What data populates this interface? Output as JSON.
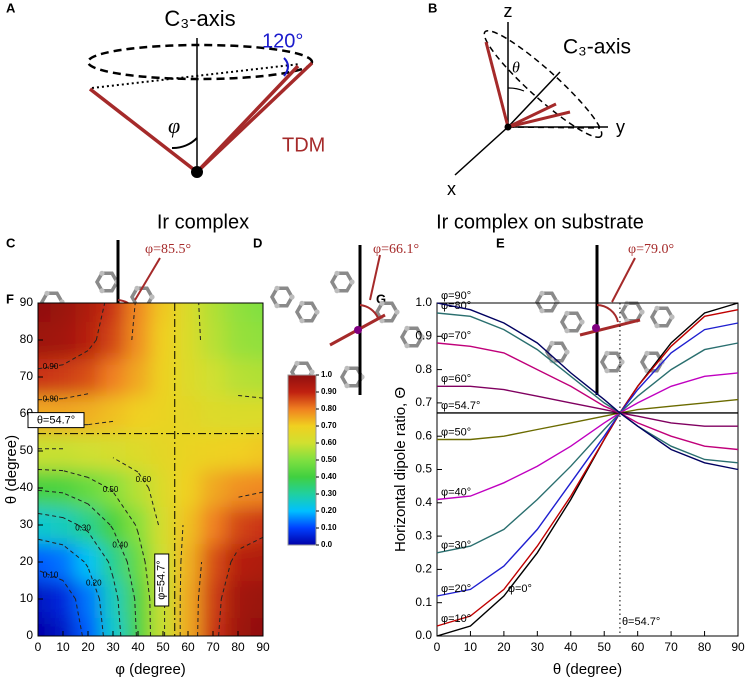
{
  "panel_labels": [
    "A",
    "B",
    "C",
    "D",
    "E",
    "F",
    "G"
  ],
  "panel_a": {
    "axis_label": "C₃-axis",
    "angle": "120°",
    "phi": "φ",
    "tdm": "TDM",
    "caption": "Ir complex"
  },
  "panel_b": {
    "z": "z",
    "y": "y",
    "x": "x",
    "theta": "θ",
    "axis_label": "C₃-axis",
    "caption": "Ir complex on substrate"
  },
  "molecules": [
    {
      "angle": "φ=85.5°"
    },
    {
      "angle": "φ=66.1°"
    },
    {
      "angle": "φ=79.0°"
    }
  ],
  "chart_data": [
    {
      "type": "heatmap",
      "x": [
        0,
        10,
        20,
        30,
        40,
        50,
        60,
        70,
        80,
        90
      ],
      "y": [
        0,
        10,
        20,
        30,
        40,
        50,
        60,
        70,
        80,
        90
      ],
      "z": [
        [
          0,
          0.03,
          0.12,
          0.25,
          0.41,
          0.59,
          0.75,
          0.88,
          0.97,
          1.0
        ],
        [
          0.03,
          0.06,
          0.14,
          0.27,
          0.42,
          0.59,
          0.75,
          0.87,
          0.96,
          0.98
        ],
        [
          0.12,
          0.14,
          0.21,
          0.32,
          0.46,
          0.6,
          0.74,
          0.85,
          0.92,
          0.94
        ],
        [
          0.25,
          0.27,
          0.32,
          0.41,
          0.51,
          0.62,
          0.72,
          0.8,
          0.86,
          0.88
        ],
        [
          0.41,
          0.42,
          0.46,
          0.51,
          0.57,
          0.64,
          0.7,
          0.75,
          0.78,
          0.79
        ],
        [
          0.59,
          0.59,
          0.6,
          0.62,
          0.64,
          0.66,
          0.68,
          0.69,
          0.7,
          0.71
        ],
        [
          0.75,
          0.75,
          0.74,
          0.72,
          0.7,
          0.68,
          0.66,
          0.64,
          0.63,
          0.63
        ],
        [
          0.88,
          0.87,
          0.85,
          0.8,
          0.75,
          0.69,
          0.64,
          0.6,
          0.57,
          0.56
        ],
        [
          0.97,
          0.96,
          0.92,
          0.86,
          0.78,
          0.7,
          0.63,
          0.57,
          0.53,
          0.52
        ],
        [
          1.0,
          0.98,
          0.94,
          0.88,
          0.79,
          0.71,
          0.63,
          0.56,
          0.52,
          0.5
        ]
      ],
      "xlim": [
        0,
        90
      ],
      "ylim": [
        0,
        90
      ],
      "xticks": [
        0,
        10,
        20,
        30,
        40,
        50,
        60,
        70,
        80,
        90
      ],
      "yticks": [
        0,
        10,
        20,
        30,
        40,
        50,
        60,
        70,
        80,
        90
      ],
      "xlabel": "φ (degree)",
      "ylabel": "θ (degree)",
      "colorscale": [
        "#0000a8",
        "#0040ff",
        "#00c0ff",
        "#20d0a0",
        "#40d040",
        "#80e040",
        "#d0e030",
        "#f0d020",
        "#f08020",
        "#c02010",
        "#901010"
      ],
      "colorbar_ticks": [
        {
          "value": 0,
          "label": "0.0"
        },
        {
          "value": 0.1,
          "label": "0.10"
        },
        {
          "value": 0.2,
          "label": "0.20"
        },
        {
          "value": 0.3,
          "label": "0.30"
        },
        {
          "value": 0.4,
          "label": "0.40"
        },
        {
          "value": 0.5,
          "label": "0.50"
        },
        {
          "value": 0.6,
          "label": "0.60"
        },
        {
          "value": 0.7,
          "label": "0.70"
        },
        {
          "value": 0.8,
          "label": "0.80"
        },
        {
          "value": 0.9,
          "label": "0.90"
        },
        {
          "value": 1,
          "label": "1.0"
        }
      ],
      "contours": [
        {
          "value": 0.1,
          "label": "0.10"
        },
        {
          "value": 0.2,
          "label": "0.20"
        },
        {
          "value": 0.3,
          "label": "0.30"
        },
        {
          "value": 0.4,
          "label": "0.40"
        },
        {
          "value": 0.5,
          "label": "0.50"
        },
        {
          "value": 0.6,
          "label": "0.60"
        },
        {
          "value": 0.7,
          "label": "0.70"
        },
        {
          "value": 0.8,
          "label": "0.80"
        },
        {
          "value": 0.9,
          "label": "0.90"
        }
      ],
      "annotations": [
        {
          "axis": "x",
          "value": 54.7,
          "label": "φ=54.7°"
        },
        {
          "axis": "y",
          "value": 54.7,
          "label": "θ=54.7°"
        }
      ]
    },
    {
      "type": "line",
      "x": [
        0,
        10,
        20,
        30,
        40,
        50,
        54.7,
        60,
        70,
        80,
        90
      ],
      "series": [
        {
          "name": "φ=0°",
          "color": "#000000",
          "values": [
            0,
            0.03,
            0.12,
            0.25,
            0.41,
            0.59,
            0.67,
            0.75,
            0.88,
            0.97,
            1.0
          ]
        },
        {
          "name": "φ=10°",
          "color": "#c00000",
          "values": [
            0.03,
            0.06,
            0.14,
            0.27,
            0.42,
            0.59,
            0.67,
            0.75,
            0.87,
            0.96,
            0.98
          ]
        },
        {
          "name": "φ=20°",
          "color": "#1f1fd0",
          "values": [
            0.12,
            0.14,
            0.21,
            0.32,
            0.46,
            0.6,
            0.67,
            0.74,
            0.85,
            0.92,
            0.94
          ]
        },
        {
          "name": "φ=30°",
          "color": "#2a6f6f",
          "values": [
            0.25,
            0.27,
            0.32,
            0.41,
            0.51,
            0.62,
            0.67,
            0.72,
            0.8,
            0.86,
            0.88
          ]
        },
        {
          "name": "φ=40°",
          "color": "#c000c0",
          "values": [
            0.41,
            0.42,
            0.46,
            0.51,
            0.57,
            0.64,
            0.67,
            0.7,
            0.75,
            0.78,
            0.79
          ]
        },
        {
          "name": "φ=50°",
          "color": "#6b6b00",
          "values": [
            0.59,
            0.59,
            0.6,
            0.62,
            0.64,
            0.66,
            0.67,
            0.68,
            0.69,
            0.7,
            0.71
          ]
        },
        {
          "name": "φ=54.7°",
          "color": "#000000",
          "values": [
            0.67,
            0.67,
            0.67,
            0.67,
            0.67,
            0.67,
            0.67,
            0.67,
            0.67,
            0.67,
            0.67
          ]
        },
        {
          "name": "φ=60°",
          "color": "#800060",
          "values": [
            0.75,
            0.75,
            0.74,
            0.72,
            0.7,
            0.68,
            0.67,
            0.66,
            0.64,
            0.63,
            0.63
          ]
        },
        {
          "name": "φ=70°",
          "color": "#c0007a",
          "values": [
            0.88,
            0.87,
            0.85,
            0.8,
            0.75,
            0.69,
            0.67,
            0.64,
            0.6,
            0.57,
            0.56
          ]
        },
        {
          "name": "φ=80°",
          "color": "#2a6f6f",
          "values": [
            0.97,
            0.96,
            0.92,
            0.86,
            0.78,
            0.7,
            0.67,
            0.63,
            0.57,
            0.53,
            0.52
          ]
        },
        {
          "name": "φ=90°",
          "color": "#000060",
          "values": [
            1.0,
            0.98,
            0.94,
            0.88,
            0.79,
            0.71,
            0.67,
            0.63,
            0.56,
            0.52,
            0.5
          ]
        }
      ],
      "xlim": [
        0,
        90
      ],
      "ylim": [
        0,
        1
      ],
      "xticks": [
        0,
        10,
        20,
        30,
        40,
        50,
        60,
        70,
        80,
        90
      ],
      "yticks": [
        {
          "value": 0,
          "label": "0.0"
        },
        0.1,
        0.2,
        0.3,
        0.4,
        0.5,
        0.6,
        0.7,
        0.8,
        0.9,
        {
          "value": 1,
          "label": "1.0"
        }
      ],
      "xlabel": "θ (degree)",
      "ylabel": "Horizontal dipole ratio, Θ",
      "annotations": [
        {
          "axis": "x",
          "value": 54.7,
          "label": "θ=54.7°"
        }
      ]
    }
  ]
}
